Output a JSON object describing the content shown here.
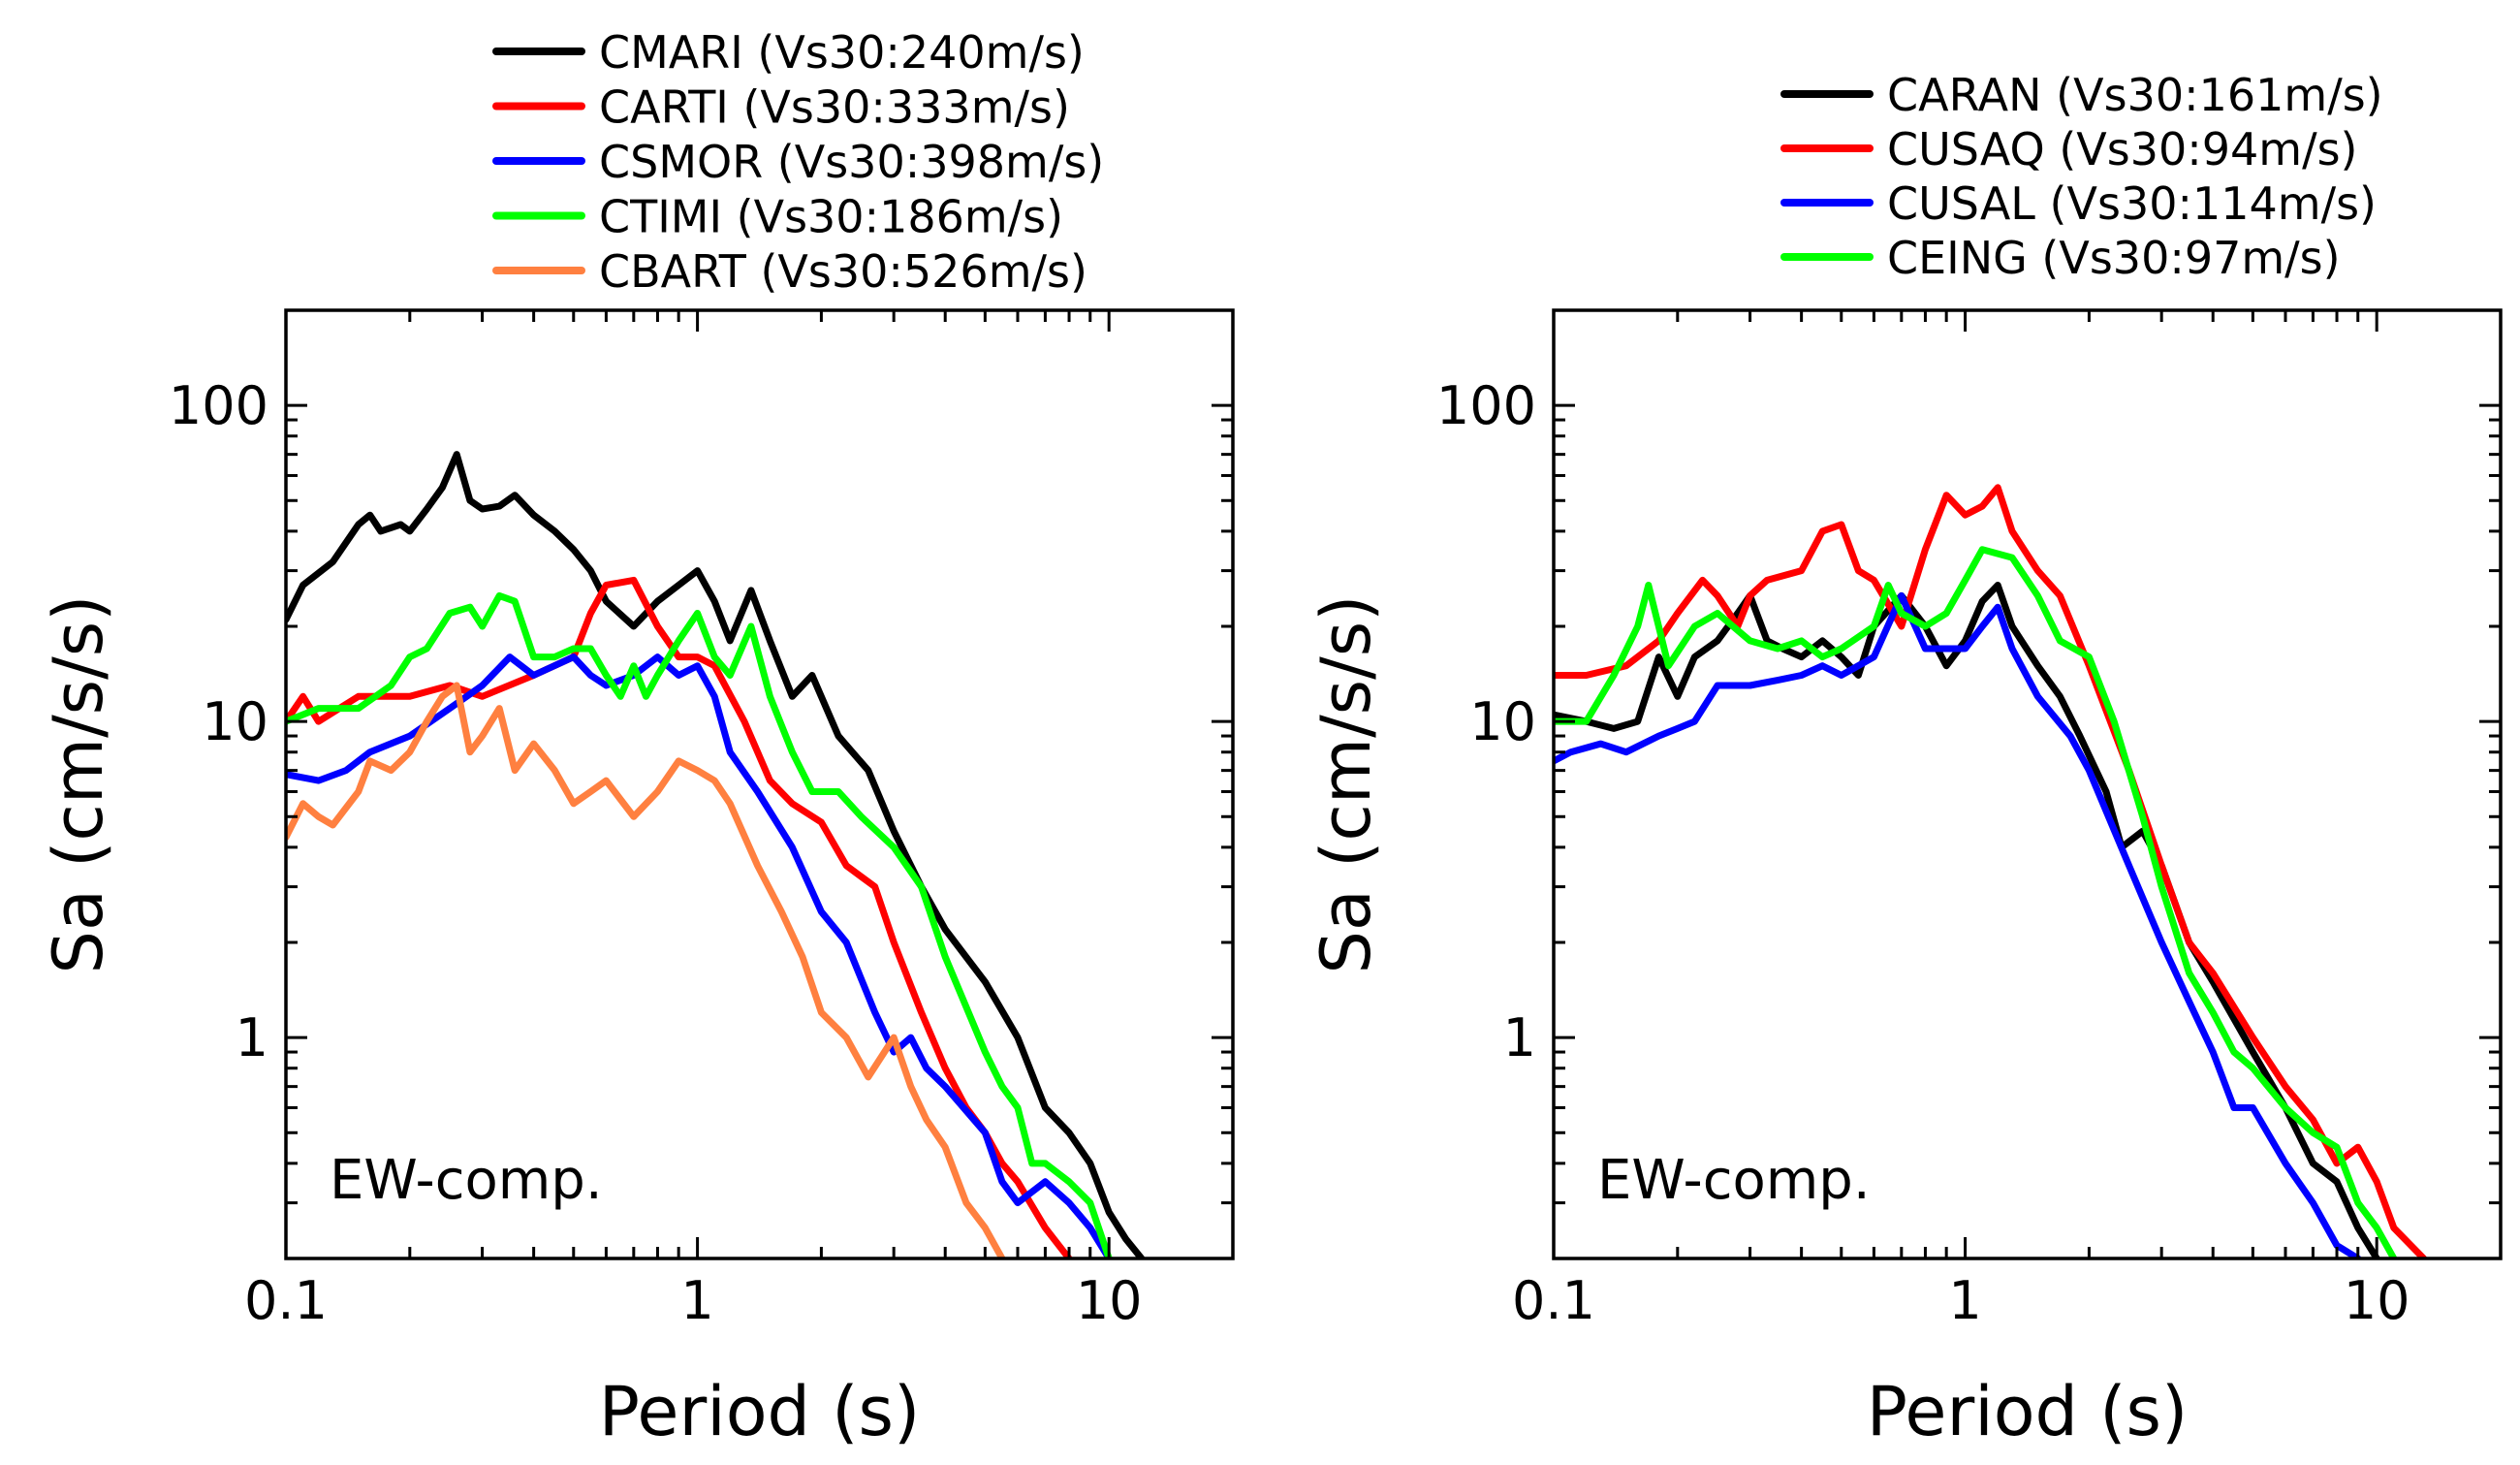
{
  "chart_data": [
    {
      "type": "line",
      "xscale": "log",
      "yscale": "log",
      "xlabel": "Period (s)",
      "ylabel": "Sa (cm/s/s)",
      "xlim": [
        0.1,
        20
      ],
      "ylim": [
        0.2,
        200
      ],
      "xticks": [
        {
          "v": 0.1,
          "label": "0.1"
        },
        {
          "v": 1,
          "label": "1"
        },
        {
          "v": 10,
          "label": "10"
        }
      ],
      "yticks": [
        {
          "v": 1,
          "label": "1"
        },
        {
          "v": 10,
          "label": "10"
        },
        {
          "v": 100,
          "label": "100"
        }
      ],
      "annotation": "EW-comp.",
      "legend_position": "top",
      "series": [
        {
          "name": "CMARI (Vs30:240m/s)",
          "color": "#000000",
          "x": [
            0.1,
            0.11,
            0.13,
            0.15,
            0.16,
            0.17,
            0.19,
            0.2,
            0.22,
            0.24,
            0.26,
            0.28,
            0.3,
            0.33,
            0.36,
            0.4,
            0.45,
            0.5,
            0.55,
            0.6,
            0.7,
            0.8,
            0.9,
            1.0,
            1.1,
            1.2,
            1.35,
            1.5,
            1.7,
            1.9,
            2.2,
            2.6,
            3,
            3.5,
            4,
            5,
            6,
            7,
            8,
            9,
            10,
            11,
            12
          ],
          "y": [
            21,
            27,
            32,
            42,
            45,
            40,
            42,
            40,
            47,
            55,
            70,
            50,
            47,
            48,
            52,
            45,
            40,
            35,
            30,
            24,
            20,
            24,
            27,
            30,
            24,
            18,
            26,
            18,
            12,
            14,
            9,
            7,
            4.5,
            3,
            2.2,
            1.5,
            1,
            0.6,
            0.5,
            0.4,
            0.28,
            0.23,
            0.2
          ]
        },
        {
          "name": "CARTI (Vs30:333m/s)",
          "color": "#ff0000",
          "x": [
            0.1,
            0.11,
            0.12,
            0.15,
            0.2,
            0.25,
            0.3,
            0.4,
            0.5,
            0.55,
            0.6,
            0.7,
            0.8,
            0.9,
            1,
            1.1,
            1.3,
            1.5,
            1.7,
            2,
            2.3,
            2.7,
            3,
            3.5,
            4,
            4.5,
            5,
            5.5,
            6,
            7,
            8
          ],
          "y": [
            10,
            12,
            10,
            12,
            12,
            13,
            12,
            14,
            16,
            22,
            27,
            28,
            20,
            16,
            16,
            15,
            10,
            6.5,
            5.5,
            4.8,
            3.5,
            3,
            2,
            1.2,
            0.8,
            0.6,
            0.5,
            0.4,
            0.35,
            0.25,
            0.2
          ]
        },
        {
          "name": "CSMOR (Vs30:398m/s)",
          "color": "#0000ff",
          "x": [
            0.1,
            0.12,
            0.14,
            0.16,
            0.2,
            0.25,
            0.3,
            0.35,
            0.4,
            0.5,
            0.55,
            0.6,
            0.7,
            0.8,
            0.9,
            1,
            1.1,
            1.2,
            1.4,
            1.7,
            2,
            2.3,
            2.7,
            3,
            3.3,
            3.6,
            4,
            5,
            5.5,
            6,
            7,
            8,
            9,
            10
          ],
          "y": [
            6.8,
            6.5,
            7,
            8,
            9,
            11,
            13,
            16,
            14,
            16,
            14,
            13,
            14,
            16,
            14,
            15,
            12,
            8,
            6,
            4,
            2.5,
            2,
            1.2,
            0.9,
            1,
            0.8,
            0.7,
            0.5,
            0.35,
            0.3,
            0.35,
            0.3,
            0.25,
            0.2
          ]
        },
        {
          "name": "CTIMI (Vs30:186m/s)",
          "color": "#00ff00",
          "x": [
            0.1,
            0.12,
            0.15,
            0.18,
            0.2,
            0.22,
            0.25,
            0.28,
            0.3,
            0.33,
            0.36,
            0.4,
            0.45,
            0.5,
            0.55,
            0.6,
            0.65,
            0.7,
            0.75,
            0.8,
            0.9,
            1,
            1.1,
            1.2,
            1.35,
            1.5,
            1.7,
            1.9,
            2.2,
            2.5,
            3,
            3.5,
            4,
            5,
            5.5,
            6,
            6.5,
            7,
            8,
            9,
            10
          ],
          "y": [
            10,
            11,
            11,
            13,
            16,
            17,
            22,
            23,
            20,
            25,
            24,
            16,
            16,
            17,
            17,
            14,
            12,
            15,
            12,
            14,
            18,
            22,
            16,
            14,
            20,
            12,
            8,
            6,
            6,
            5,
            4,
            3,
            1.8,
            0.9,
            0.7,
            0.6,
            0.4,
            0.4,
            0.35,
            0.3,
            0.2
          ]
        },
        {
          "name": "CBART (Vs30:526m/s)",
          "color": "#ff8040",
          "x": [
            0.1,
            0.11,
            0.12,
            0.13,
            0.15,
            0.16,
            0.18,
            0.2,
            0.22,
            0.24,
            0.26,
            0.28,
            0.3,
            0.33,
            0.36,
            0.4,
            0.45,
            0.5,
            0.55,
            0.6,
            0.7,
            0.8,
            0.9,
            1,
            1.1,
            1.2,
            1.4,
            1.6,
            1.8,
            2,
            2.3,
            2.6,
            3,
            3.3,
            3.6,
            4,
            4.5,
            5,
            5.5
          ],
          "y": [
            4.3,
            5.5,
            5,
            4.7,
            6,
            7.5,
            7,
            8,
            10,
            12,
            13,
            8,
            9,
            11,
            7,
            8.5,
            7,
            5.5,
            6,
            6.5,
            5,
            6,
            7.5,
            7,
            6.5,
            5.5,
            3.5,
            2.5,
            1.8,
            1.2,
            1,
            0.75,
            1,
            0.7,
            0.55,
            0.45,
            0.3,
            0.25,
            0.2
          ]
        }
      ]
    },
    {
      "type": "line",
      "xscale": "log",
      "yscale": "log",
      "xlabel": "Period (s)",
      "ylabel": "Sa (cm/s/s)",
      "xlim": [
        0.1,
        20
      ],
      "ylim": [
        0.2,
        200
      ],
      "xticks": [
        {
          "v": 0.1,
          "label": "0.1"
        },
        {
          "v": 1,
          "label": "1"
        },
        {
          "v": 10,
          "label": "10"
        }
      ],
      "yticks": [
        {
          "v": 1,
          "label": "1"
        },
        {
          "v": 10,
          "label": "10"
        },
        {
          "v": 100,
          "label": "100"
        }
      ],
      "annotation": "EW-comp.",
      "legend_position": "top",
      "series": [
        {
          "name": "CARAN (Vs30:161m/s)",
          "color": "#000000",
          "x": [
            0.1,
            0.12,
            0.14,
            0.16,
            0.18,
            0.2,
            0.22,
            0.25,
            0.28,
            0.3,
            0.33,
            0.36,
            0.4,
            0.45,
            0.5,
            0.55,
            0.6,
            0.7,
            0.8,
            0.9,
            1,
            1.1,
            1.2,
            1.3,
            1.5,
            1.7,
            1.9,
            2.2,
            2.4,
            2.7,
            3,
            3.5,
            4,
            5,
            6,
            7,
            8,
            9,
            10
          ],
          "y": [
            10.5,
            10,
            9.5,
            10,
            16,
            12,
            16,
            18,
            22,
            25,
            18,
            17,
            16,
            18,
            16,
            14,
            20,
            25,
            20,
            15,
            18,
            24,
            27,
            20,
            15,
            12,
            9,
            6,
            4,
            4.5,
            3.5,
            2,
            1.5,
            0.9,
            0.6,
            0.4,
            0.35,
            0.25,
            0.2
          ]
        },
        {
          "name": "CUSAQ (Vs30:94m/s)",
          "color": "#ff0000",
          "x": [
            0.1,
            0.12,
            0.15,
            0.18,
            0.2,
            0.23,
            0.25,
            0.28,
            0.3,
            0.33,
            0.4,
            0.45,
            0.5,
            0.55,
            0.6,
            0.7,
            0.8,
            0.9,
            1,
            1.1,
            1.2,
            1.3,
            1.5,
            1.7,
            2,
            2.5,
            3,
            3.5,
            4,
            5,
            6,
            7,
            8,
            9,
            10,
            11,
            13
          ],
          "y": [
            14,
            14,
            15,
            18,
            22,
            28,
            25,
            20,
            25,
            28,
            30,
            40,
            42,
            30,
            28,
            20,
            35,
            52,
            45,
            48,
            55,
            40,
            30,
            25,
            15,
            7,
            3.5,
            2,
            1.6,
            1,
            0.7,
            0.55,
            0.4,
            0.45,
            0.35,
            0.25,
            0.2
          ]
        },
        {
          "name": "CUSAL (Vs30:114m/s)",
          "color": "#0000ff",
          "x": [
            0.1,
            0.11,
            0.13,
            0.15,
            0.18,
            0.2,
            0.22,
            0.25,
            0.3,
            0.35,
            0.4,
            0.45,
            0.5,
            0.6,
            0.7,
            0.8,
            0.9,
            1,
            1.1,
            1.2,
            1.3,
            1.5,
            1.8,
            2,
            2.5,
            3,
            3.5,
            4,
            4.5,
            5,
            6,
            7,
            8,
            9
          ],
          "y": [
            7.5,
            8,
            8.5,
            8,
            9,
            9.5,
            10,
            13,
            13,
            13.5,
            14,
            15,
            14,
            16,
            25,
            17,
            17,
            17,
            20,
            23,
            17,
            12,
            9,
            7,
            3.5,
            2,
            1.3,
            0.9,
            0.6,
            0.6,
            0.4,
            0.3,
            0.22,
            0.2
          ]
        },
        {
          "name": "CEING (Vs30:97m/s)",
          "color": "#00ff00",
          "x": [
            0.1,
            0.12,
            0.14,
            0.16,
            0.17,
            0.19,
            0.22,
            0.25,
            0.3,
            0.35,
            0.4,
            0.45,
            0.5,
            0.6,
            0.65,
            0.7,
            0.8,
            0.9,
            1,
            1.1,
            1.3,
            1.5,
            1.7,
            2,
            2.3,
            2.7,
            3,
            3.5,
            4,
            4.5,
            5,
            6,
            7,
            8,
            9,
            10,
            11
          ],
          "y": [
            10,
            10,
            14,
            20,
            27,
            15,
            20,
            22,
            18,
            17,
            18,
            16,
            17,
            20,
            27,
            22,
            20,
            22,
            28,
            35,
            33,
            25,
            18,
            16,
            10,
            5,
            3,
            1.6,
            1.2,
            0.9,
            0.8,
            0.6,
            0.5,
            0.45,
            0.3,
            0.25,
            0.2
          ]
        }
      ]
    }
  ]
}
